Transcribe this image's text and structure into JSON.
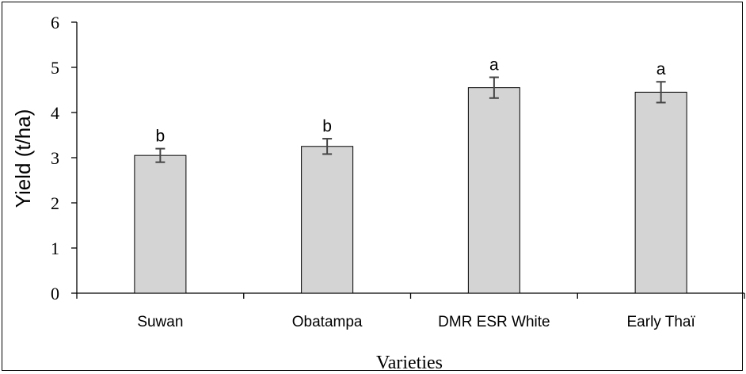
{
  "chart_data": {
    "type": "bar",
    "categories": [
      "Suwan",
      "Obatampa",
      "DMR ESR White",
      "Early Thaï"
    ],
    "values": [
      3.05,
      3.25,
      4.55,
      4.45
    ],
    "error": [
      0.15,
      0.17,
      0.23,
      0.23
    ],
    "significance": [
      "b",
      "b",
      "a",
      "a"
    ],
    "xlabel": "Varieties",
    "ylabel": "Yield  (t/ha)",
    "ylim": [
      0,
      6
    ],
    "yticks": [
      0,
      1,
      2,
      3,
      4,
      5,
      6
    ],
    "bar_color": "#d4d4d4",
    "grid": false
  }
}
